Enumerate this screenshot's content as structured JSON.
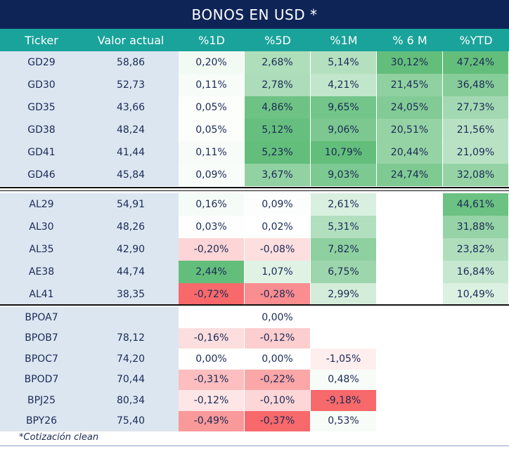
{
  "title": "BONOS EN USD *",
  "headers": [
    "Ticker",
    "Valor actual",
    "%1D",
    "%5D",
    "%1M",
    "% 6 M",
    "%YTD"
  ],
  "colors": {
    "title_bg": "#0f2456",
    "header_bg": "#1aa39a",
    "ticker_bg": "#dce6f1"
  },
  "groups": [
    {
      "rows": [
        {
          "ticker": "GD29",
          "valor": "58,86",
          "d1": "0,20%",
          "d5": "2,68%",
          "m1": "5,14%",
          "m6": "30,12%",
          "ytd": "47,24%"
        },
        {
          "ticker": "GD30",
          "valor": "52,73",
          "d1": "0,11%",
          "d5": "2,78%",
          "m1": "4,21%",
          "m6": "21,45%",
          "ytd": "36,48%"
        },
        {
          "ticker": "GD35",
          "valor": "43,66",
          "d1": "0,05%",
          "d5": "4,86%",
          "m1": "9,65%",
          "m6": "24,05%",
          "ytd": "27,73%"
        },
        {
          "ticker": "GD38",
          "valor": "48,24",
          "d1": "0,05%",
          "d5": "5,12%",
          "m1": "9,06%",
          "m6": "20,51%",
          "ytd": "21,56%"
        },
        {
          "ticker": "GD41",
          "valor": "41,44",
          "d1": "0,11%",
          "d5": "5,23%",
          "m1": "10,79%",
          "m6": "20,44%",
          "ytd": "21,09%"
        },
        {
          "ticker": "GD46",
          "valor": "45,84",
          "d1": "0,09%",
          "d5": "3,67%",
          "m1": "9,03%",
          "m6": "24,74%",
          "ytd": "32,08%"
        }
      ]
    },
    {
      "rows": [
        {
          "ticker": "AL29",
          "valor": "54,91",
          "d1": "0,16%",
          "d5": "0,09%",
          "m1": "2,61%",
          "m6": "",
          "ytd": "44,61%"
        },
        {
          "ticker": "AL30",
          "valor": "48,26",
          "d1": "0,03%",
          "d5": "0,02%",
          "m1": "5,31%",
          "m6": "",
          "ytd": "31,88%"
        },
        {
          "ticker": "AL35",
          "valor": "42,90",
          "d1": "-0,20%",
          "d5": "-0,08%",
          "m1": "7,82%",
          "m6": "",
          "ytd": "23,82%"
        },
        {
          "ticker": "AE38",
          "valor": "44,74",
          "d1": "2,44%",
          "d5": "1,07%",
          "m1": "6,75%",
          "m6": "",
          "ytd": "16,84%"
        },
        {
          "ticker": "AL41",
          "valor": "38,35",
          "d1": "-0,72%",
          "d5": "-0,28%",
          "m1": "2,99%",
          "m6": "",
          "ytd": "10,49%"
        }
      ]
    },
    {
      "rows": [
        {
          "ticker": "BPOA7",
          "valor": "",
          "d1": "",
          "d5": "0,00%",
          "m1": "",
          "m6": "",
          "ytd": ""
        },
        {
          "ticker": "BPOB7",
          "valor": "78,12",
          "d1": "-0,16%",
          "d5": "-0,12%",
          "m1": "",
          "m6": "",
          "ytd": ""
        },
        {
          "ticker": "BPOC7",
          "valor": "74,20",
          "d1": "0,00%",
          "d5": "0,00%",
          "m1": "-1,05%",
          "m6": "",
          "ytd": ""
        },
        {
          "ticker": "BPOD7",
          "valor": "70,44",
          "d1": "-0,31%",
          "d5": "-0,22%",
          "m1": "0,48%",
          "m6": "",
          "ytd": ""
        },
        {
          "ticker": "BPJ25",
          "valor": "80,34",
          "d1": "-0,12%",
          "d5": "-0,10%",
          "m1": "-9,18%",
          "m6": "",
          "ytd": ""
        },
        {
          "ticker": "BPY26",
          "valor": "75,40",
          "d1": "-0,49%",
          "d5": "-0,37%",
          "m1": "0,53%",
          "m6": "",
          "ytd": ""
        }
      ]
    }
  ],
  "footnote": "*Cotización clean"
}
